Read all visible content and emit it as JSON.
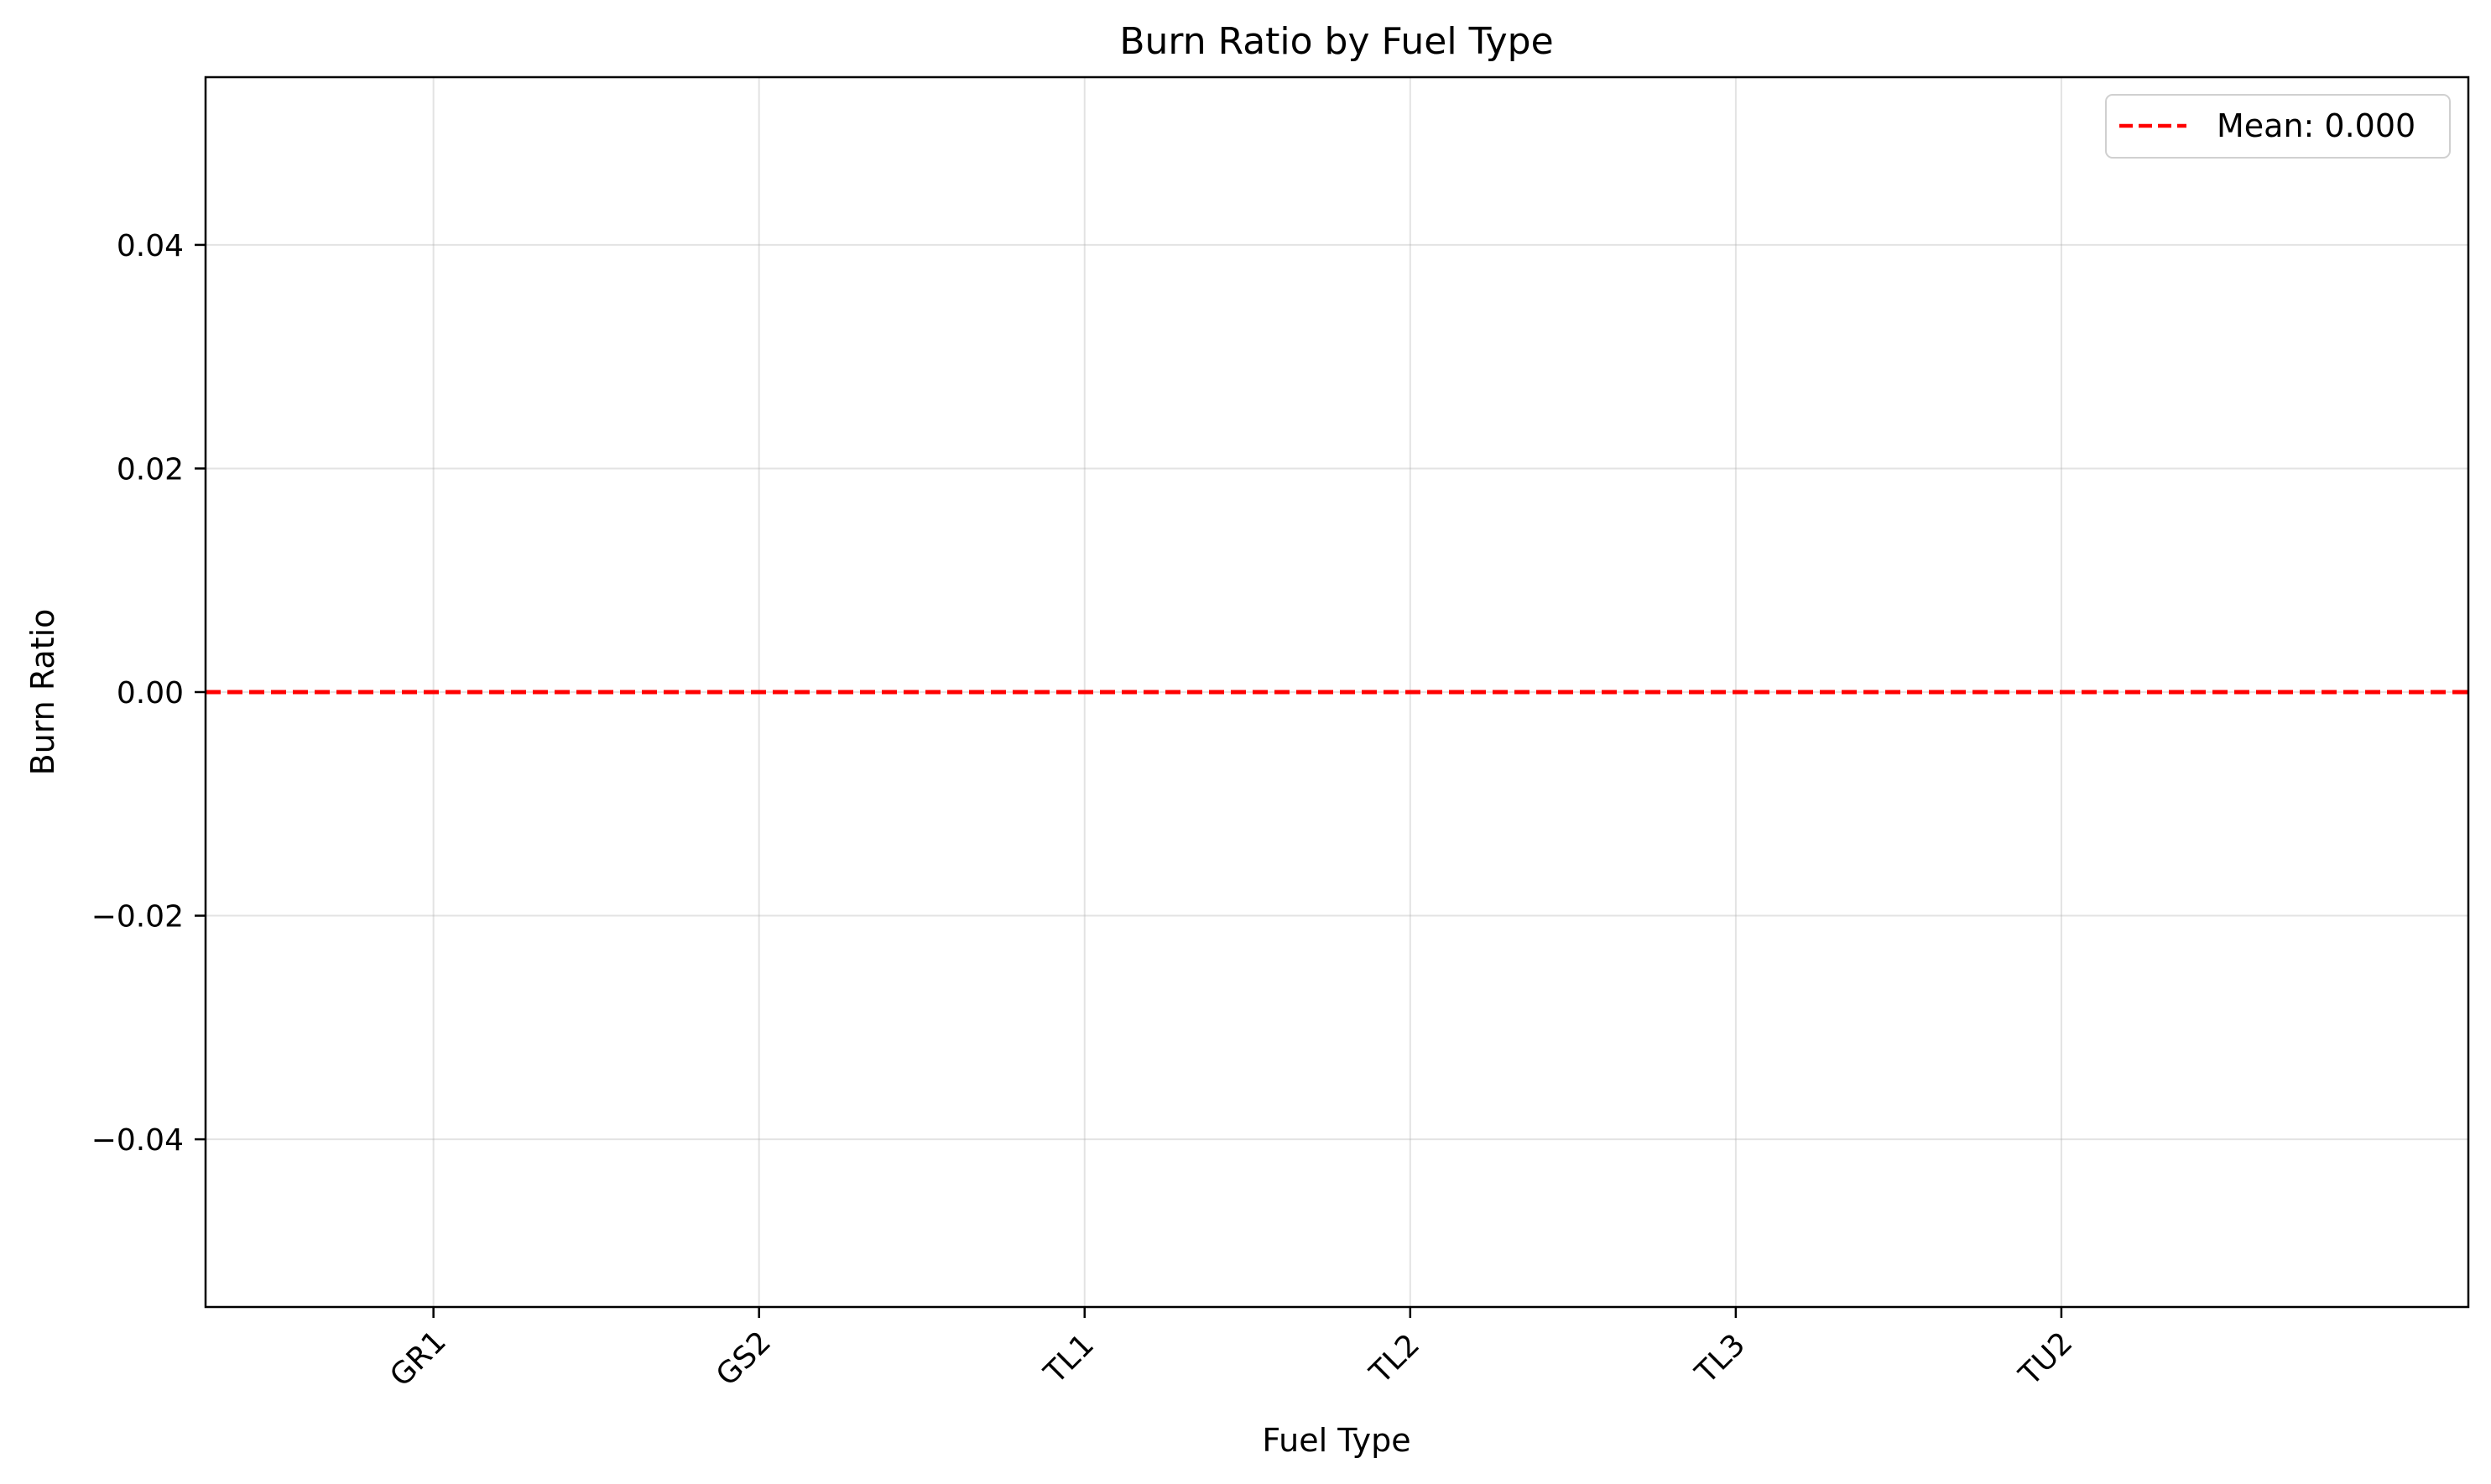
{
  "chart_data": {
    "type": "bar",
    "title": "Burn Ratio by Fuel Type",
    "xlabel": "Fuel Type",
    "ylabel": "Burn Ratio",
    "categories": [
      "GR1",
      "GS2",
      "TL1",
      "TL2",
      "TL3",
      "TU2"
    ],
    "values": [
      0,
      0,
      0,
      0,
      0,
      0
    ],
    "ylim": [
      -0.055,
      0.055
    ],
    "yticks": [
      -0.04,
      -0.02,
      0.0,
      0.02,
      0.04
    ],
    "ytick_labels": [
      "−0.04",
      "−0.02",
      "0.00",
      "0.02",
      "0.04"
    ],
    "grid": true,
    "reference_line": {
      "value": 0.0,
      "style": "dashed",
      "color": "#ff0000",
      "label": "Mean: 0.000"
    },
    "legend": {
      "position": "top-right",
      "entries": [
        "Mean: 0.000"
      ]
    }
  }
}
